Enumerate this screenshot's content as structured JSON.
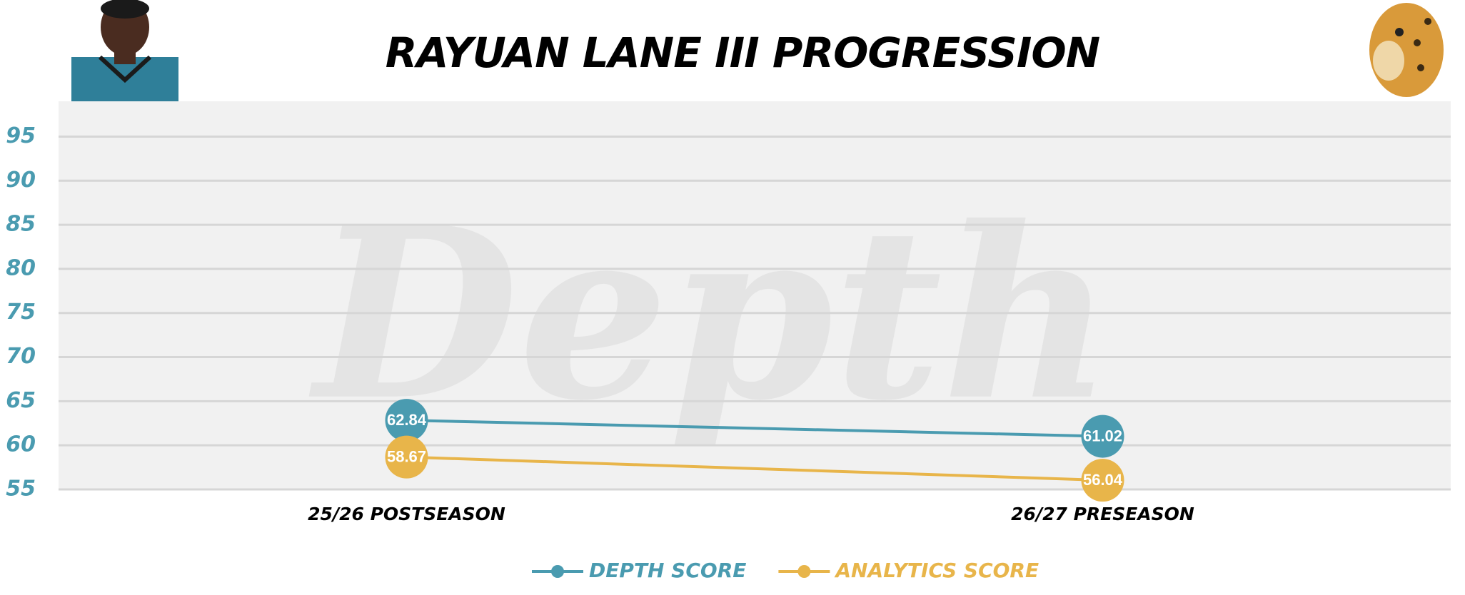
{
  "chart_data": {
    "type": "line",
    "title": "RAYUAN LANE III PROGRESSION",
    "watermark": "Depth",
    "categories": [
      "25/26 POSTSEASON",
      "26/27 PRESEASON"
    ],
    "series": [
      {
        "name": "DEPTH SCORE",
        "color": "#4a9bb0",
        "values": [
          62.84,
          61.02
        ]
      },
      {
        "name": "ANALYTICS SCORE",
        "color": "#e8b54a",
        "values": [
          58.67,
          56.04
        ]
      }
    ],
    "ylim": [
      55,
      99
    ],
    "yticks": [
      55,
      60,
      65,
      70,
      75,
      80,
      85,
      90,
      95
    ],
    "grid": true,
    "legend": "bottom"
  }
}
